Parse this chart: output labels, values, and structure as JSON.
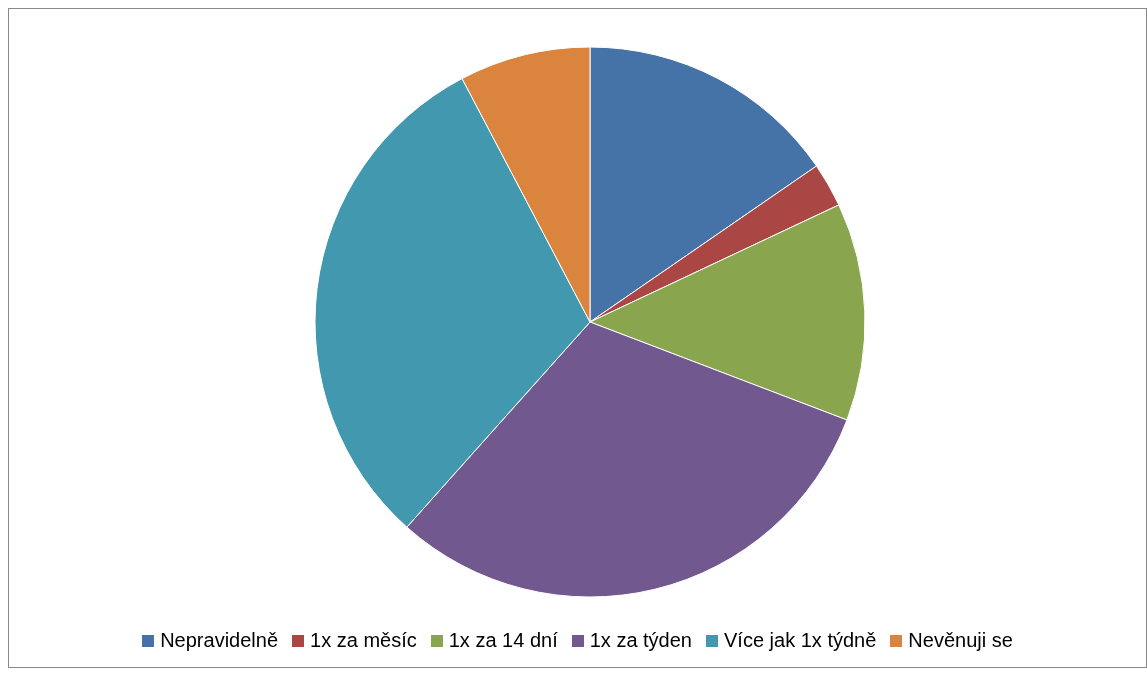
{
  "chart_data": {
    "type": "pie",
    "categories": [
      "Nepravidelně",
      "1x za měsíc",
      "1x za 14 dní",
      "1x za týden",
      "Více jak 1x týdně",
      "Nevěnuji se"
    ],
    "values": [
      15.4,
      2.6,
      12.8,
      30.8,
      30.7,
      7.7
    ],
    "colors": [
      "#4572a7",
      "#aa4643",
      "#89a54e",
      "#71588f",
      "#4198af",
      "#db843d"
    ],
    "legend": "bottom"
  }
}
